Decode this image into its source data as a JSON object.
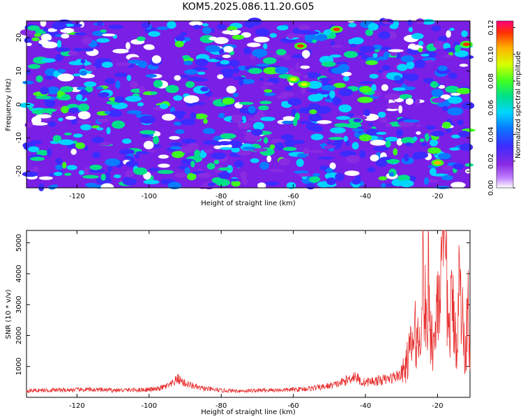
{
  "title": "KOM5.2025.086.11.20.G05",
  "chart_data": [
    {
      "type": "heatmap",
      "xlabel": "Height of straight line (km)",
      "ylabel": "Frequency (Hz)",
      "xlim": [
        -134,
        -11
      ],
      "ylim": [
        -25,
        25
      ],
      "xticks": [
        -120,
        -100,
        -80,
        -60,
        -40,
        -20
      ],
      "yticks": [
        -20,
        -10,
        0,
        10,
        20
      ],
      "colorbar": {
        "label": "Normalized spectral amplitude",
        "range": [
          0,
          0.125
        ],
        "ticks": [
          "0.00",
          "0.02",
          "0.04",
          "0.06",
          "0.08",
          "0.10",
          "0.12"
        ]
      },
      "hotspots": [
        {
          "x": -58,
          "y": 17.5,
          "value": 0.12
        },
        {
          "x": -48,
          "y": 22.5,
          "value": 0.12
        },
        {
          "x": -20,
          "y": -17.5,
          "value": 0.11
        },
        {
          "x": -12,
          "y": 18,
          "value": 0.12
        },
        {
          "x": -60,
          "y": 7.5,
          "value": 0.1
        },
        {
          "x": -57,
          "y": 6,
          "value": 0.1
        },
        {
          "x": -92,
          "y": -15,
          "value": 0.09
        },
        {
          "x": -40,
          "y": -10,
          "value": 0.08
        },
        {
          "x": -78,
          "y": 1,
          "value": 0.08
        },
        {
          "x": -40,
          "y": 4.5,
          "value": 0.08
        }
      ]
    },
    {
      "type": "line",
      "xlabel": "Height of straight line (km)",
      "ylabel": "SNR (10 * v/v)",
      "xlim": [
        -134,
        -11
      ],
      "ylim": [
        0,
        5400
      ],
      "xticks": [
        -120,
        -100,
        -80,
        -60,
        -40,
        -20
      ],
      "yticks": [
        1000,
        2000,
        3000,
        4000,
        5000
      ],
      "color": "#e83030",
      "series": [
        {
          "x": [
            -134,
            -128,
            -122,
            -116,
            -110,
            -104,
            -98,
            -94,
            -92,
            -90,
            -86,
            -80,
            -74,
            -68,
            -62,
            -56,
            -52,
            -48,
            -45,
            -43,
            -41,
            -38,
            -34,
            -31,
            -29,
            -28,
            -27,
            -26,
            -25,
            -24.5,
            -24,
            -23,
            -22.5,
            -22,
            -21,
            -20,
            -19,
            -18.5,
            -18,
            -17.5,
            -17,
            -16,
            -15,
            -14.5,
            -14,
            -13,
            -12.5,
            -12,
            -11.5,
            -11
          ],
          "y": [
            220,
            230,
            240,
            250,
            230,
            240,
            260,
            400,
            600,
            450,
            300,
            220,
            210,
            230,
            240,
            280,
            330,
            420,
            560,
            700,
            480,
            520,
            580,
            700,
            900,
            1400,
            1700,
            2100,
            1600,
            3300,
            4100,
            1900,
            4000,
            2300,
            1500,
            3500,
            3800,
            4300,
            5400,
            4000,
            2000,
            3000,
            2200,
            1600,
            3800,
            2400,
            1400,
            1900,
            4200,
            600
          ]
        }
      ]
    }
  ]
}
